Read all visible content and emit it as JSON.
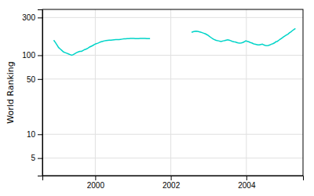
{
  "chart_data": {
    "type": "line",
    "y_label": "World Ranking",
    "log": "y",
    "grid": true,
    "xlim": [
      1998.6,
      2005.5
    ],
    "ylim": [
      3,
      380
    ],
    "xticks": [
      2000,
      2002,
      2004
    ],
    "yticks": [
      5,
      10,
      50,
      100,
      300
    ],
    "series": [
      {
        "color": "#00d4c8",
        "x": [
          1998.9,
          1998.94322,
          1998.986441,
          1999.029661,
          1999.072881,
          1999.116102,
          1999.159322,
          1999.202542,
          1999.245763,
          1999.288983,
          1999.332203,
          1999.375424,
          1999.418644,
          1999.461864,
          1999.505085,
          1999.548305,
          1999.591525,
          1999.634746,
          1999.677966,
          1999.721186,
          1999.764407,
          1999.807627,
          1999.850847,
          1999.894068,
          1999.937288,
          1999.980508,
          2000.023729,
          2000.066949,
          2000.110169,
          2000.15339,
          2000.19661,
          2000.239831,
          2000.283051,
          2000.326271,
          2000.369492,
          2000.412712,
          2000.455932,
          2000.499153,
          2000.542373,
          2000.585593,
          2000.628814,
          2000.672034,
          2000.715254,
          2000.758475,
          2000.801695,
          2000.844915,
          2000.888136,
          2000.931356,
          2000.974576,
          2001.017797,
          2001.061017,
          2001.104237,
          2001.147458,
          2001.190678,
          2001.233898,
          2001.277119,
          2001.320339,
          2001.363559,
          2001.40678,
          2001.45
        ],
        "values": [
          155,
          145,
          135,
          125,
          120,
          115,
          110,
          108,
          106,
          104,
          102,
          100,
          102,
          105,
          108,
          110,
          112,
          112,
          115,
          118,
          120,
          123,
          127,
          130,
          133,
          137,
          140,
          142,
          145,
          148,
          150,
          152,
          153,
          154,
          155,
          155,
          156,
          157,
          158,
          158,
          158,
          159,
          160,
          161,
          161,
          162,
          162,
          163,
          163,
          163,
          162,
          162,
          162,
          163,
          163,
          163,
          163,
          162,
          162,
          162
        ]
      },
      {
        "color": "#00d4c8",
        "x": [
          2002.55,
          2002.589855,
          2002.62971,
          2002.669565,
          2002.70942,
          2002.749275,
          2002.78913,
          2002.828986,
          2002.868841,
          2002.908696,
          2002.948551,
          2002.988406,
          2003.028261,
          2003.068116,
          2003.107971,
          2003.147826,
          2003.187681,
          2003.227536,
          2003.267391,
          2003.307246,
          2003.347101,
          2003.386957,
          2003.426812,
          2003.466667,
          2003.506522,
          2003.546377,
          2003.586232,
          2003.626087,
          2003.665942,
          2003.705797,
          2003.745652,
          2003.785507,
          2003.825362,
          2003.865217,
          2003.905072,
          2003.944928,
          2003.984783,
          2004.024638,
          2004.064493,
          2004.104348,
          2004.144203,
          2004.184058,
          2004.223913,
          2004.263768,
          2004.303623,
          2004.343478,
          2004.383333,
          2004.423188,
          2004.463043,
          2004.502899,
          2004.542754,
          2004.582609,
          2004.622464,
          2004.662319,
          2004.702174,
          2004.742029,
          2004.781884,
          2004.821739,
          2004.861594,
          2004.901449,
          2004.941304,
          2004.981159,
          2005.021014,
          2005.06087,
          2005.100725,
          2005.14058,
          2005.180435,
          2005.22029,
          2005.260145,
          2005.3
        ],
        "values": [
          195,
          198,
          200,
          202,
          200,
          198,
          196,
          193,
          190,
          187,
          183,
          178,
          172,
          167,
          162,
          158,
          155,
          153,
          152,
          150,
          150,
          152,
          153,
          155,
          157,
          155,
          153,
          150,
          148,
          147,
          145,
          143,
          142,
          143,
          145,
          148,
          152,
          150,
          148,
          145,
          143,
          140,
          138,
          137,
          135,
          135,
          137,
          138,
          135,
          133,
          132,
          133,
          135,
          138,
          140,
          143,
          148,
          150,
          155,
          160,
          165,
          170,
          175,
          180,
          185,
          192,
          198,
          205,
          212,
          218
        ]
      }
    ]
  }
}
